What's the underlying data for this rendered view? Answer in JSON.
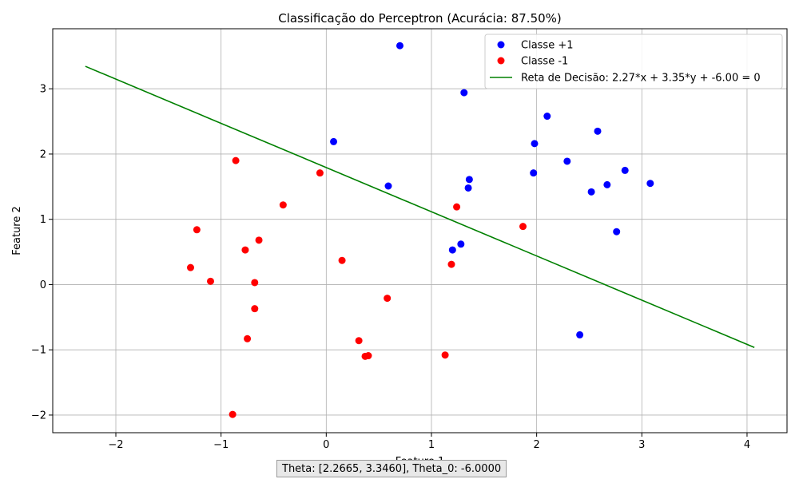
{
  "chart_data": {
    "type": "scatter",
    "title": "Classificação do Perceptron (Acurácia: 87.50%)",
    "xlabel": "Feature 1",
    "ylabel": "Feature 2",
    "xlim": [
      -2.6,
      4.38
    ],
    "ylim": [
      -2.27,
      3.92
    ],
    "xticks": [
      -2,
      -1,
      0,
      1,
      2,
      3,
      4
    ],
    "yticks": [
      -2,
      -1,
      0,
      1,
      2,
      3
    ],
    "grid": true,
    "legend_position": "top-right",
    "series": [
      {
        "name": "Classe +1",
        "color": "#0000ff",
        "points": [
          [
            0.7,
            3.66
          ],
          [
            1.31,
            2.94
          ],
          [
            2.1,
            2.58
          ],
          [
            2.58,
            2.35
          ],
          [
            1.98,
            2.16
          ],
          [
            0.07,
            2.19
          ],
          [
            2.29,
            1.89
          ],
          [
            2.84,
            1.75
          ],
          [
            1.97,
            1.71
          ],
          [
            3.08,
            1.55
          ],
          [
            1.36,
            1.61
          ],
          [
            2.67,
            1.53
          ],
          [
            0.59,
            1.51
          ],
          [
            1.35,
            1.48
          ],
          [
            2.52,
            1.42
          ],
          [
            2.76,
            0.81
          ],
          [
            1.28,
            0.62
          ],
          [
            1.2,
            0.53
          ],
          [
            2.41,
            -0.77
          ]
        ]
      },
      {
        "name": "Classe -1",
        "color": "#ff0000",
        "points": [
          [
            -0.86,
            1.9
          ],
          [
            -0.06,
            1.71
          ],
          [
            -0.41,
            1.22
          ],
          [
            1.24,
            1.19
          ],
          [
            -1.23,
            0.84
          ],
          [
            1.87,
            0.89
          ],
          [
            -0.64,
            0.68
          ],
          [
            -0.77,
            0.53
          ],
          [
            0.15,
            0.37
          ],
          [
            1.19,
            0.31
          ],
          [
            -1.29,
            0.26
          ],
          [
            -1.1,
            0.05
          ],
          [
            -0.68,
            0.03
          ],
          [
            0.58,
            -0.21
          ],
          [
            -0.68,
            -0.37
          ],
          [
            -0.75,
            -0.83
          ],
          [
            0.31,
            -0.86
          ],
          [
            0.37,
            -1.1
          ],
          [
            0.4,
            -1.09
          ],
          [
            1.13,
            -1.08
          ],
          [
            -0.89,
            -1.99
          ]
        ]
      }
    ],
    "line": {
      "name": "Reta de Decisão: 2.27*x + 3.35*y + -6.00 = 0",
      "color": "#008000",
      "theta": [
        2.2665,
        3.346
      ],
      "theta0": -6.0,
      "x_range": [
        -2.29,
        4.07
      ]
    },
    "footer_text": "Theta: [2.2665, 3.3460], Theta_0: -6.0000"
  }
}
